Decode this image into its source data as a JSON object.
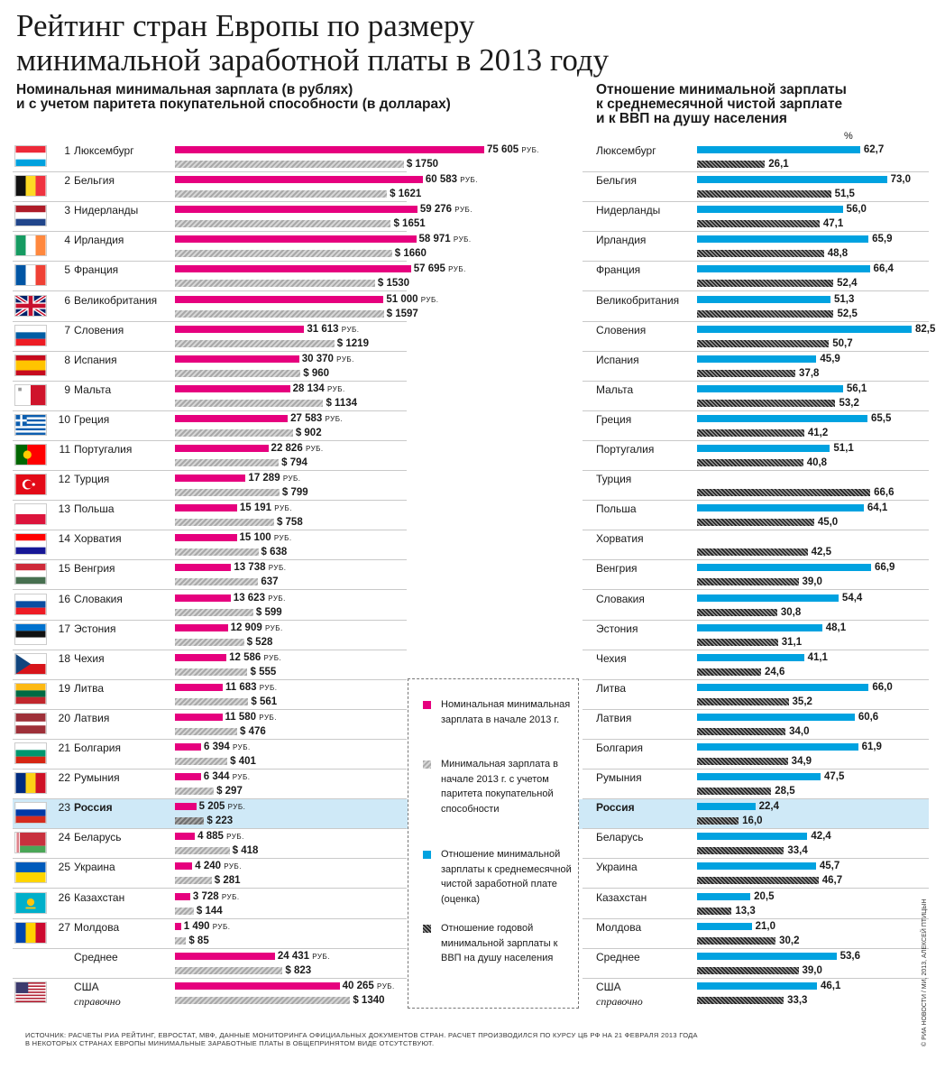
{
  "title": "Рейтинг стран Европы по размеру минимальной заработной платы в 2013 году",
  "subtitle_left_1": "Номинальная минимальная зарплата (в рублях)",
  "subtitle_left_2": "и с учетом паритета покупательной способности (в долларах)",
  "subtitle_right_1": "Отношение минимальной зарплаты",
  "subtitle_right_2": "к среднемесячной чистой зарплате",
  "subtitle_right_3": "и к ВВП на душу населения",
  "percent_sign": "%",
  "rub_suffix": "РУБ.",
  "colors": {
    "pink": "#e6007e",
    "blue": "#00a2e0",
    "highlight": "#cfe9f7"
  },
  "legend": [
    {
      "text": "Номинальная минимальная зарплата в начале 2013 г.",
      "swatch": "pink"
    },
    {
      "text": "Минимальная зарплата в начале 2013 г. с учетом паритета покупательной способности",
      "swatch": "gray"
    },
    {
      "text": "Отношение минимальной зарплаты к среднемесячной чистой заработной плате (оценка)",
      "swatch": "blue"
    },
    {
      "text": "Отношение годовой минимальной зарплаты к ВВП на душу населения",
      "swatch": "hatch"
    }
  ],
  "footer_1": "ИСТОЧНИК: РАСЧЕТЫ РИА РЕЙТИНГ, ЕВРОСТАТ, МВФ, ДАННЫЕ МОНИТОРИНГА ОФИЦИАЛЬНЫХ ДОКУМЕНТОВ СТРАН. РАСЧЕТ ПРОИЗВОДИЛСЯ ПО КУРСУ ЦБ РФ НА 21 ФЕВРАЛЯ 2013 ГОДА",
  "footer_2": "В НЕКОТОРЫХ СТРАНАХ ЕВРОПЫ МИНИМАЛЬНЫЕ ЗАРАБОТНЫЕ ПЛАТЫ В ОБЩЕПРИНЯТОМ ВИДЕ ОТСУТСТВУЮТ.",
  "credit": "© РИА НОВОСТИ / МИ, 2013, АЛЕКСЕЙ ПТИЦЫН",
  "chart_data": [
    {
      "type": "bar",
      "title": "Номинальная минимальная зарплата (в рублях) и с учетом паритета покупательной способности (в долларах)",
      "xlim": [
        0,
        75605
      ],
      "xlim_usd": [
        0,
        1750
      ],
      "rows": [
        {
          "rank": "1",
          "country": "Люксембург",
          "flag": "luxembourg-flag",
          "rub": 75605,
          "rub_label": "75 605",
          "usd": 1750,
          "usd_label": "$ 1750"
        },
        {
          "rank": "2",
          "country": "Бельгия",
          "flag": "belgium-flag",
          "rub": 60583,
          "rub_label": "60 583",
          "usd": 1621,
          "usd_label": "$ 1621"
        },
        {
          "rank": "3",
          "country": "Нидерланды",
          "flag": "netherlands-flag",
          "rub": 59276,
          "rub_label": "59 276",
          "usd": 1651,
          "usd_label": "$ 1651"
        },
        {
          "rank": "4",
          "country": "Ирландия",
          "flag": "ireland-flag",
          "rub": 58971,
          "rub_label": "58 971",
          "usd": 1660,
          "usd_label": "$ 1660"
        },
        {
          "rank": "5",
          "country": "Франция",
          "flag": "france-flag",
          "rub": 57695,
          "rub_label": "57 695",
          "usd": 1530,
          "usd_label": "$ 1530"
        },
        {
          "rank": "6",
          "country": "Великобритания",
          "flag": "uk-flag",
          "rub": 51000,
          "rub_label": "51 000",
          "usd": 1597,
          "usd_label": "$ 1597"
        },
        {
          "rank": "7",
          "country": "Словения",
          "flag": "slovenia-flag",
          "rub": 31613,
          "rub_label": "31 613",
          "usd": 1219,
          "usd_label": "$ 1219"
        },
        {
          "rank": "8",
          "country": "Испания",
          "flag": "spain-flag",
          "rub": 30370,
          "rub_label": "30 370",
          "usd": 960,
          "usd_label": "$ 960"
        },
        {
          "rank": "9",
          "country": "Мальта",
          "flag": "malta-flag",
          "rub": 28134,
          "rub_label": "28 134",
          "usd": 1134,
          "usd_label": "$ 1134"
        },
        {
          "rank": "10",
          "country": "Греция",
          "flag": "greece-flag",
          "rub": 27583,
          "rub_label": "27 583",
          "usd": 902,
          "usd_label": "$ 902"
        },
        {
          "rank": "11",
          "country": "Португалия",
          "flag": "portugal-flag",
          "rub": 22826,
          "rub_label": "22 826",
          "usd": 794,
          "usd_label": "$ 794"
        },
        {
          "rank": "12",
          "country": "Турция",
          "flag": "turkey-flag",
          "rub": 17289,
          "rub_label": "17 289",
          "usd": 799,
          "usd_label": "$ 799"
        },
        {
          "rank": "13",
          "country": "Польша",
          "flag": "poland-flag",
          "rub": 15191,
          "rub_label": "15 191",
          "usd": 758,
          "usd_label": "$ 758"
        },
        {
          "rank": "14",
          "country": "Хорватия",
          "flag": "croatia-flag",
          "rub": 15100,
          "rub_label": "15 100",
          "usd": 638,
          "usd_label": "$ 638"
        },
        {
          "rank": "15",
          "country": "Венгрия",
          "flag": "hungary-flag",
          "rub": 13738,
          "rub_label": "13 738",
          "usd": 637,
          "usd_label": "637"
        },
        {
          "rank": "16",
          "country": "Словакия",
          "flag": "slovakia-flag",
          "rub": 13623,
          "rub_label": "13 623",
          "usd": 599,
          "usd_label": "$ 599"
        },
        {
          "rank": "17",
          "country": "Эстония",
          "flag": "estonia-flag",
          "rub": 12909,
          "rub_label": "12 909",
          "usd": 528,
          "usd_label": "$ 528"
        },
        {
          "rank": "18",
          "country": "Чехия",
          "flag": "czech-flag",
          "rub": 12586,
          "rub_label": "12 586",
          "usd": 555,
          "usd_label": "$ 555"
        },
        {
          "rank": "19",
          "country": "Литва",
          "flag": "lithuania-flag",
          "rub": 11683,
          "rub_label": "11 683",
          "usd": 561,
          "usd_label": "$ 561"
        },
        {
          "rank": "20",
          "country": "Латвия",
          "flag": "latvia-flag",
          "rub": 11580,
          "rub_label": "11 580",
          "usd": 476,
          "usd_label": "$ 476"
        },
        {
          "rank": "21",
          "country": "Болгария",
          "flag": "bulgaria-flag",
          "rub": 6394,
          "rub_label": "6 394",
          "usd": 401,
          "usd_label": "$ 401"
        },
        {
          "rank": "22",
          "country": "Румыния",
          "flag": "romania-flag",
          "rub": 6344,
          "rub_label": "6 344",
          "usd": 297,
          "usd_label": "$ 297"
        },
        {
          "rank": "23",
          "country": "Россия",
          "flag": "russia-flag",
          "rub": 5205,
          "rub_label": "5 205",
          "usd": 223,
          "usd_label": "$ 223",
          "highlight": true
        },
        {
          "rank": "24",
          "country": "Беларусь",
          "flag": "belarus-flag",
          "rub": 4885,
          "rub_label": "4 885",
          "usd": 418,
          "usd_label": "$ 418"
        },
        {
          "rank": "25",
          "country": "Украина",
          "flag": "ukraine-flag",
          "rub": 4240,
          "rub_label": "4 240",
          "usd": 281,
          "usd_label": "$ 281"
        },
        {
          "rank": "26",
          "country": "Казахстан",
          "flag": "kazakhstan-flag",
          "rub": 3728,
          "rub_label": "3 728",
          "usd": 144,
          "usd_label": "$ 144"
        },
        {
          "rank": "27",
          "country": "Молдова",
          "flag": "moldova-flag",
          "rub": 1490,
          "rub_label": "1 490",
          "usd": 85,
          "usd_label": "$ 85"
        },
        {
          "rank": "",
          "country": "Среднее",
          "flag": "",
          "rub": 24431,
          "rub_label": "24 431",
          "usd": 823,
          "usd_label": "$ 823"
        },
        {
          "rank": "",
          "country": "США",
          "country_note": "справочно",
          "flag": "usa-flag",
          "rub": 40265,
          "rub_label": "40 265",
          "usd": 1340,
          "usd_label": "$ 1340"
        }
      ]
    },
    {
      "type": "bar",
      "title": "Отношение минимальной зарплаты к среднемесячной чистой зарплате и к ВВП на душу населения",
      "unit": "%",
      "xlim": [
        0,
        82.5
      ],
      "rows": [
        {
          "country": "Люксембург",
          "net": 62.7,
          "net_label": "62,7",
          "gdp": 26.1,
          "gdp_label": "26,1"
        },
        {
          "country": "Бельгия",
          "net": 73.0,
          "net_label": "73,0",
          "gdp": 51.5,
          "gdp_label": "51,5"
        },
        {
          "country": "Нидерланды",
          "net": 56.0,
          "net_label": "56,0",
          "gdp": 47.1,
          "gdp_label": "47,1"
        },
        {
          "country": "Ирландия",
          "net": 65.9,
          "net_label": "65,9",
          "gdp": 48.8,
          "gdp_label": "48,8"
        },
        {
          "country": "Франция",
          "net": 66.4,
          "net_label": "66,4",
          "gdp": 52.4,
          "gdp_label": "52,4"
        },
        {
          "country": "Великобритания",
          "net": 51.3,
          "net_label": "51,3",
          "gdp": 52.5,
          "gdp_label": "52,5"
        },
        {
          "country": "Словения",
          "net": 82.5,
          "net_label": "82,5",
          "gdp": 50.7,
          "gdp_label": "50,7"
        },
        {
          "country": "Испания",
          "net": 45.9,
          "net_label": "45,9",
          "gdp": 37.8,
          "gdp_label": "37,8"
        },
        {
          "country": "Мальта",
          "net": 56.1,
          "net_label": "56,1",
          "gdp": 53.2,
          "gdp_label": "53,2"
        },
        {
          "country": "Греция",
          "net": 65.5,
          "net_label": "65,5",
          "gdp": 41.2,
          "gdp_label": "41,2"
        },
        {
          "country": "Португалия",
          "net": 51.1,
          "net_label": "51,1",
          "gdp": 40.8,
          "gdp_label": "40,8"
        },
        {
          "country": "Турция",
          "net": null,
          "net_label": "",
          "gdp": 66.6,
          "gdp_label": "66,6"
        },
        {
          "country": "Польша",
          "net": 64.1,
          "net_label": "64,1",
          "gdp": 45.0,
          "gdp_label": "45,0"
        },
        {
          "country": "Хорватия",
          "net": null,
          "net_label": "",
          "gdp": 42.5,
          "gdp_label": "42,5"
        },
        {
          "country": "Венгрия",
          "net": 66.9,
          "net_label": "66,9",
          "gdp": 39.0,
          "gdp_label": "39,0"
        },
        {
          "country": "Словакия",
          "net": 54.4,
          "net_label": "54,4",
          "gdp": 30.8,
          "gdp_label": "30,8"
        },
        {
          "country": "Эстония",
          "net": 48.1,
          "net_label": "48,1",
          "gdp": 31.1,
          "gdp_label": "31,1"
        },
        {
          "country": "Чехия",
          "net": 41.1,
          "net_label": "41,1",
          "gdp": 24.6,
          "gdp_label": "24,6"
        },
        {
          "country": "Литва",
          "net": 66.0,
          "net_label": "66,0",
          "gdp": 35.2,
          "gdp_label": "35,2"
        },
        {
          "country": "Латвия",
          "net": 60.6,
          "net_label": "60,6",
          "gdp": 34.0,
          "gdp_label": "34,0"
        },
        {
          "country": "Болгария",
          "net": 61.9,
          "net_label": "61,9",
          "gdp": 34.9,
          "gdp_label": "34,9"
        },
        {
          "country": "Румыния",
          "net": 47.5,
          "net_label": "47,5",
          "gdp": 28.5,
          "gdp_label": "28,5"
        },
        {
          "country": "Россия",
          "net": 22.4,
          "net_label": "22,4",
          "gdp": 16.0,
          "gdp_label": "16,0",
          "highlight": true
        },
        {
          "country": "Беларусь",
          "net": 42.4,
          "net_label": "42,4",
          "gdp": 33.4,
          "gdp_label": "33,4"
        },
        {
          "country": "Украина",
          "net": 45.7,
          "net_label": "45,7",
          "gdp": 46.7,
          "gdp_label": "46,7"
        },
        {
          "country": "Казахстан",
          "net": 20.5,
          "net_label": "20,5",
          "gdp": 13.3,
          "gdp_label": "13,3"
        },
        {
          "country": "Молдова",
          "net": 21.0,
          "net_label": "21,0",
          "gdp": 30.2,
          "gdp_label": "30,2"
        },
        {
          "country": "Среднее",
          "net": 53.6,
          "net_label": "53,6",
          "gdp": 39.0,
          "gdp_label": "39,0"
        },
        {
          "country": "США",
          "country_note": "справочно",
          "net": 46.1,
          "net_label": "46,1",
          "gdp": 33.3,
          "gdp_label": "33,3"
        }
      ]
    }
  ]
}
